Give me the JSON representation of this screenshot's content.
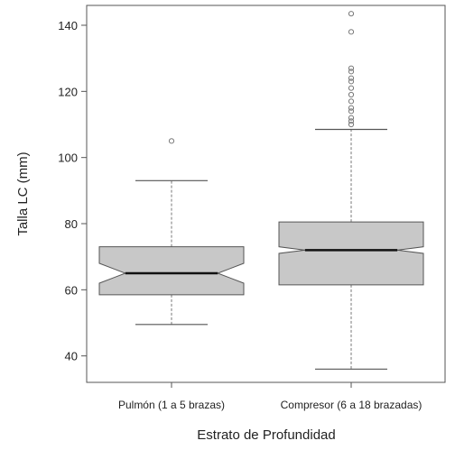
{
  "chart_data": {
    "type": "boxplot",
    "notched": true,
    "title": "",
    "xlabel": "Estrato de Profundidad",
    "ylabel": "Talla LC (mm)",
    "ylim": [
      32,
      146
    ],
    "yticks": [
      40,
      60,
      80,
      100,
      120,
      140
    ],
    "grid": false,
    "legend": "none",
    "box_fill": "#c8c8c8",
    "box_stroke": "#555555",
    "categories": [
      "Pulmón (1 a 5 brazas)",
      "Compresor (6 a 18 brazadas)"
    ],
    "boxes": [
      {
        "category": "Pulmón (1 a 5 brazas)",
        "whisker_low": 49.5,
        "q1": 58.5,
        "median": 65,
        "q3": 73,
        "whisker_high": 93,
        "notch_low": 62,
        "notch_high": 68,
        "outliers": [
          105
        ]
      },
      {
        "category": "Compresor (6 a 18 brazadas)",
        "whisker_low": 36,
        "q1": 61.5,
        "median": 72,
        "q3": 80.5,
        "whisker_high": 108.5,
        "notch_low": 71,
        "notch_high": 73,
        "outliers": [
          110,
          111,
          112,
          114,
          115,
          117,
          119,
          121,
          123,
          124,
          126,
          127,
          138,
          143.5
        ]
      }
    ]
  }
}
